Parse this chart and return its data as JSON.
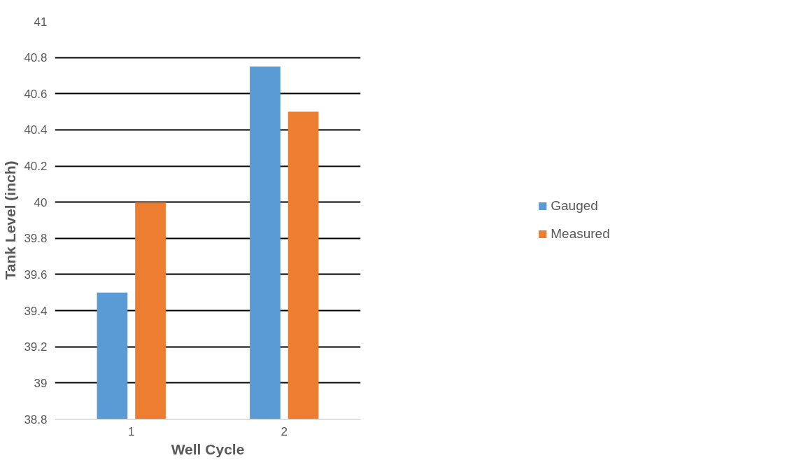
{
  "chart_data": {
    "type": "bar",
    "xlabel": "Well Cycle",
    "ylabel": "Tank Level (inch)",
    "categories": [
      "1",
      "2"
    ],
    "series": [
      {
        "name": "Gauged",
        "color": "#5b9bd5",
        "values": [
          39.5,
          40.75
        ]
      },
      {
        "name": "Measured",
        "color": "#ed7d31",
        "values": [
          40.0,
          40.5
        ]
      }
    ],
    "ylim": [
      38.8,
      41
    ],
    "yticks": [
      38.8,
      39,
      39.2,
      39.4,
      39.6,
      39.8,
      40,
      40.2,
      40.4,
      40.6,
      40.8,
      41
    ],
    "grid": "y",
    "legend": "right"
  }
}
